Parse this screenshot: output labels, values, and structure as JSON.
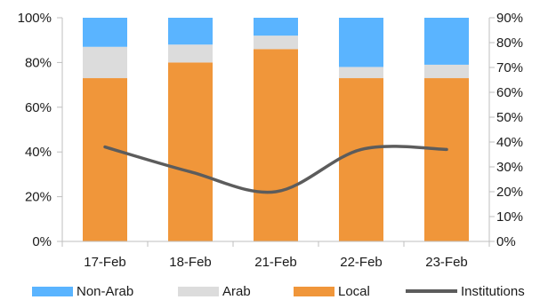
{
  "chart_data": {
    "type": "bar",
    "stacked": true,
    "categories": [
      "17-Feb",
      "18-Feb",
      "21-Feb",
      "22-Feb",
      "23-Feb"
    ],
    "series": [
      {
        "name": "Local",
        "type": "bar",
        "axis": "left",
        "values": [
          73,
          80,
          86,
          73,
          73
        ],
        "color": "#f0963a"
      },
      {
        "name": "Arab",
        "type": "bar",
        "axis": "left",
        "values": [
          14,
          8,
          6,
          5,
          6
        ],
        "color": "#dcdcdc"
      },
      {
        "name": "Non-Arab",
        "type": "bar",
        "axis": "left",
        "values": [
          13,
          12,
          8,
          22,
          21
        ],
        "color": "#5ab4ff"
      },
      {
        "name": "Institutions",
        "type": "line",
        "axis": "right",
        "values": [
          38,
          28,
          20,
          37,
          37
        ],
        "color": "#5c5c5c"
      }
    ],
    "y_left": {
      "ticks": [
        "0%",
        "20%",
        "40%",
        "60%",
        "80%",
        "100%"
      ],
      "ylim": [
        0,
        100
      ]
    },
    "y_right": {
      "ticks": [
        "0%",
        "10%",
        "20%",
        "30%",
        "40%",
        "50%",
        "60%",
        "70%",
        "80%",
        "90%"
      ],
      "ylim": [
        0,
        90
      ]
    },
    "legend": {
      "placement": "bottom",
      "items": [
        {
          "label": "Non-Arab",
          "kind": "bar",
          "color": "#5ab4ff"
        },
        {
          "label": "Arab",
          "kind": "bar",
          "color": "#dcdcdc"
        },
        {
          "label": "Local",
          "kind": "bar",
          "color": "#f0963a"
        },
        {
          "label": "Institutions",
          "kind": "line",
          "color": "#5c5c5c"
        }
      ]
    },
    "grid": false
  }
}
